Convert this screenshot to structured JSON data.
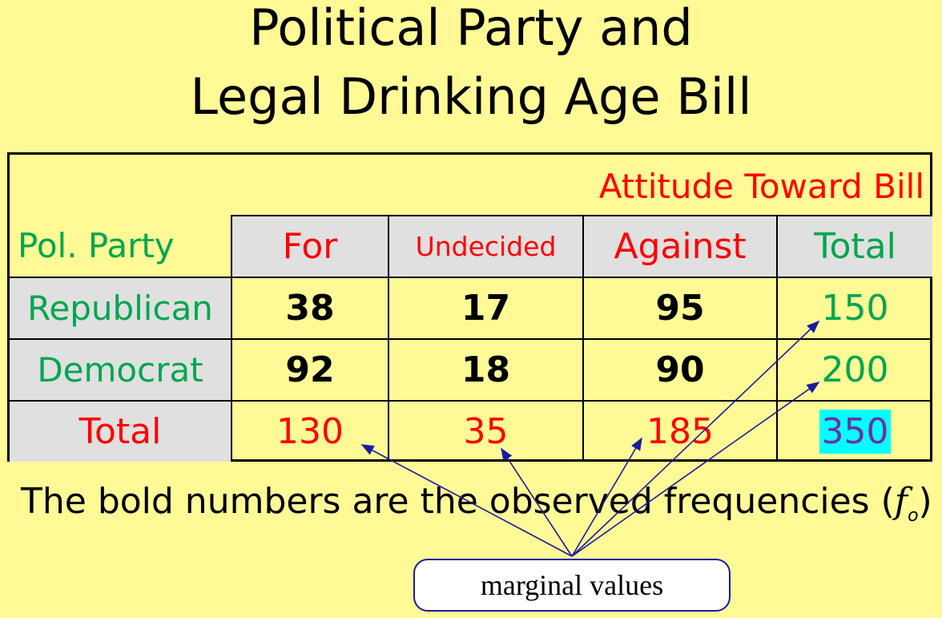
{
  "title": {
    "line1": "Political Party and",
    "line2": "Legal Drinking Age Bill"
  },
  "table": {
    "column_group_header": "Attitude Toward Bill",
    "row_header_label": "Pol. Party",
    "columns": [
      "For",
      "Undecided",
      "Against",
      "Total"
    ],
    "rows": [
      {
        "label": "Republican",
        "values": [
          "38",
          "17",
          "95"
        ],
        "total": "150"
      },
      {
        "label": "Democrat",
        "values": [
          "92",
          "18",
          "90"
        ],
        "total": "200"
      }
    ],
    "totals_row": {
      "label": "Total",
      "values": [
        "130",
        "35",
        "185"
      ],
      "grand_total": "350"
    }
  },
  "caption": {
    "text": "The bold numbers are the observed frequencies (",
    "symbol": "f",
    "subscript": "o",
    "close": ")"
  },
  "callout": {
    "label": "marginal values"
  },
  "colors": {
    "background": "#fffa96",
    "green": "#00a650",
    "red": "#ff0000",
    "grey_cell": "#e0e0e0",
    "highlight": "#00ffff",
    "grand_total_text": "#7030a0",
    "arrow": "#1a1aa0"
  }
}
